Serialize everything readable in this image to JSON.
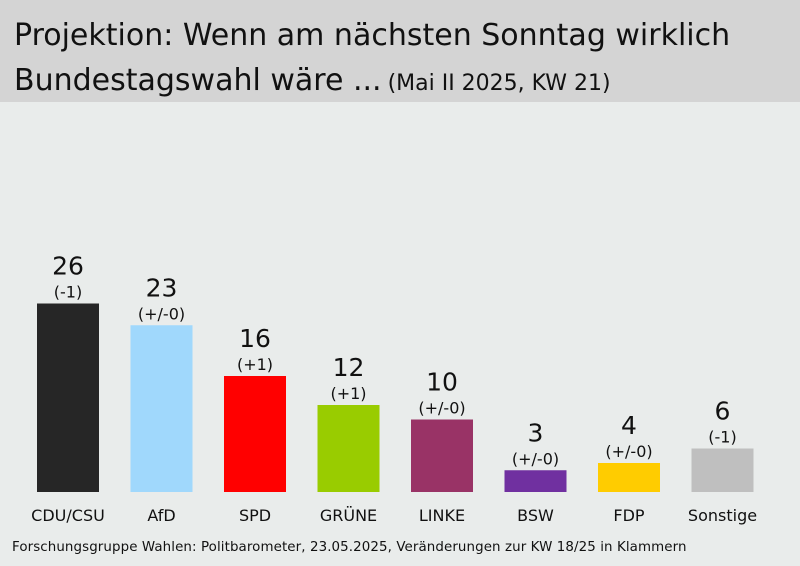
{
  "header": {
    "title_line1": "Projektion: Wenn am nächsten Sonntag wirklich",
    "title_line2": "Bundestagswahl wäre ...",
    "subtitle": "(Mai II 2025, KW 21)"
  },
  "footer": {
    "source": "Forschungsgruppe Wahlen: Politbarometer, 23.05.2025, Veränderungen zur KW 18/25 in Klammern"
  },
  "chart_data": {
    "type": "bar",
    "title": "Projektion: Wenn am nächsten Sonntag wirklich Bundestagswahl wäre ...",
    "subtitle": "(Mai II 2025, KW 21)",
    "categories": [
      "CDU/CSU",
      "AfD",
      "SPD",
      "GRÜNE",
      "LINKE",
      "BSW",
      "FDP",
      "Sonstige"
    ],
    "values": [
      26,
      23,
      16,
      12,
      10,
      3,
      4,
      6
    ],
    "changes": [
      "(-1)",
      "(+/-0)",
      "(+1)",
      "(+1)",
      "(+/-0)",
      "(+/-0)",
      "(+/-0)",
      "(-1)"
    ],
    "colors": [
      "#262626",
      "#a0d8fc",
      "#ff0000",
      "#99cc00",
      "#993366",
      "#7030a0",
      "#ffcc00",
      "#bfbfbf"
    ],
    "grid": false,
    "legend": false
  }
}
